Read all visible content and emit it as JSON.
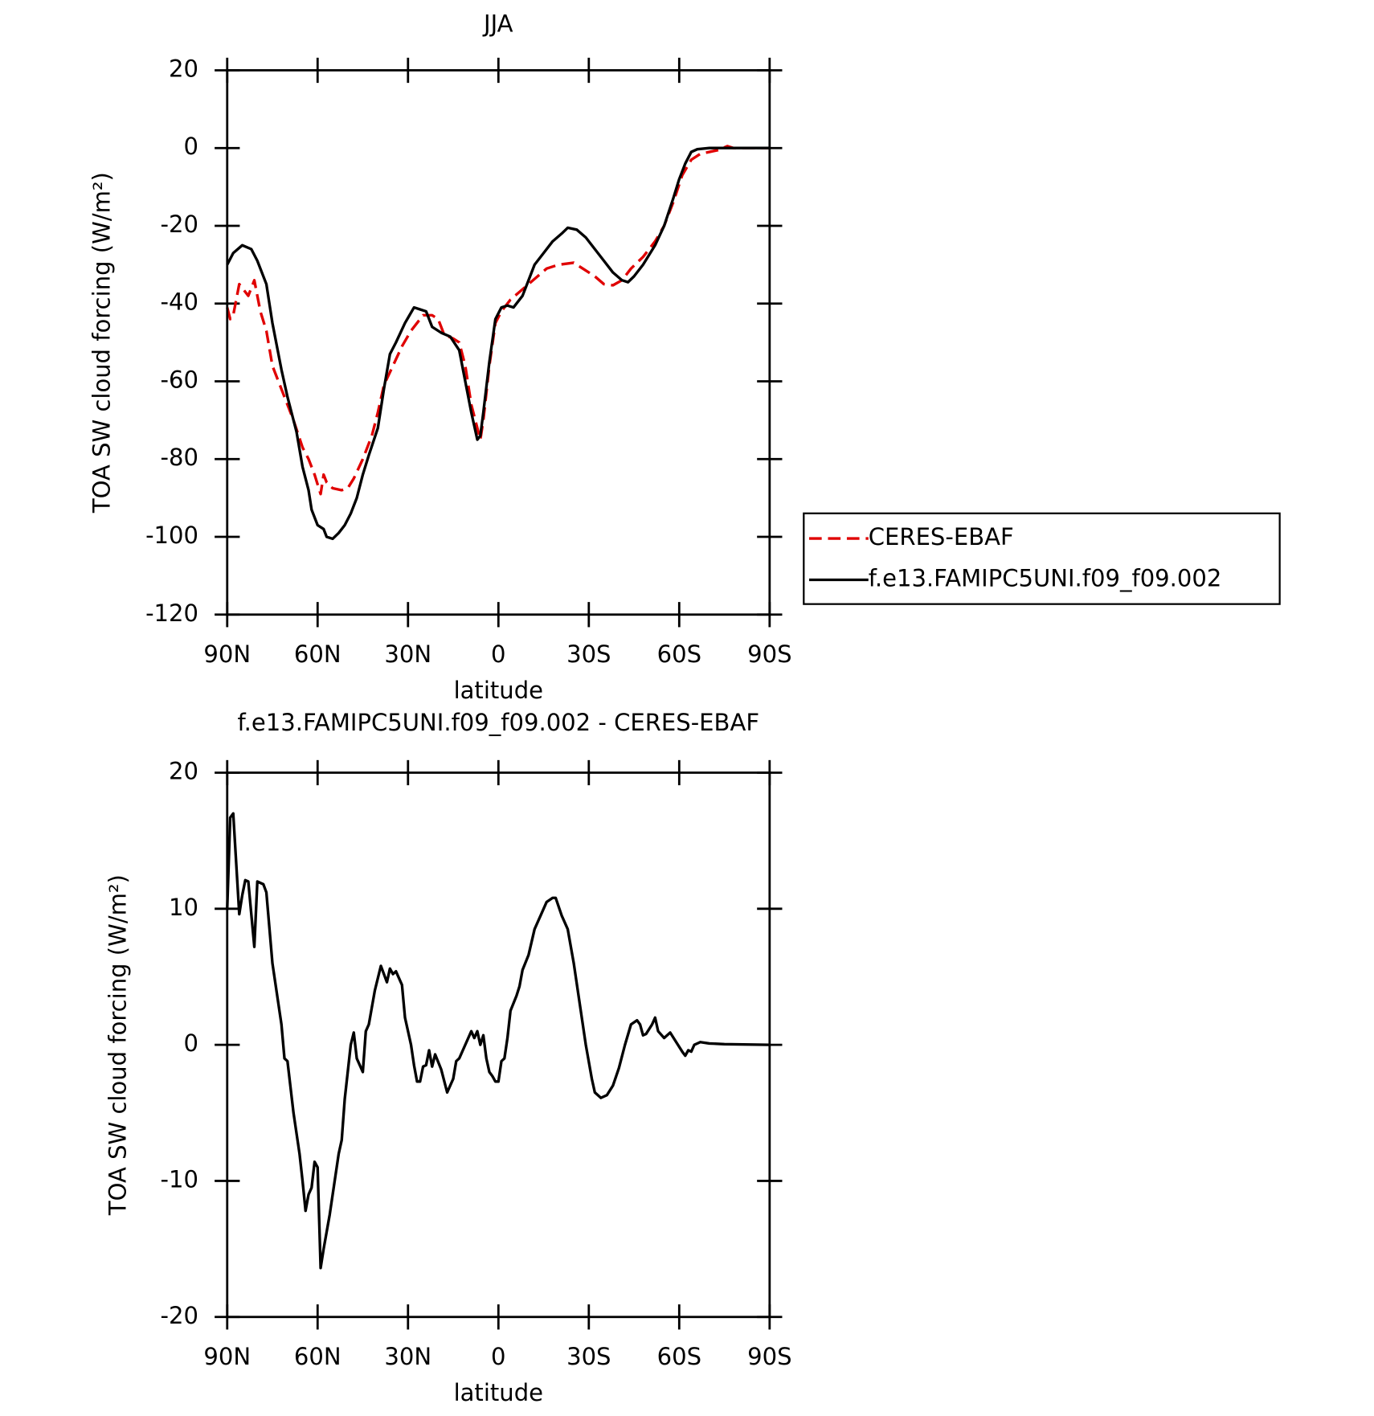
{
  "chart_data": [
    {
      "type": "line",
      "title": "JJA",
      "xlabel": "latitude",
      "ylabel": "TOA SW cloud forcing (W/m²)",
      "xlim": [
        90,
        -90
      ],
      "xticks": [
        {
          "value": 90,
          "label": "90N"
        },
        {
          "value": 60,
          "label": "60N"
        },
        {
          "value": 30,
          "label": "30N"
        },
        0,
        {
          "value": -30,
          "label": "30S"
        },
        {
          "value": -60,
          "label": "60S"
        },
        {
          "value": -90,
          "label": "90S"
        }
      ],
      "ylim": [
        -120,
        20
      ],
      "yticks": [
        -120,
        -100,
        -80,
        -60,
        -40,
        -20,
        0,
        20
      ],
      "legend": "right",
      "series": [
        {
          "name": "CERES-EBAF",
          "color": "#e00000",
          "dashed": true,
          "x": [
            90,
            89,
            88,
            86,
            84,
            83,
            81,
            79,
            77,
            75,
            72,
            70,
            68,
            65,
            63,
            61,
            59,
            58,
            57,
            55,
            52,
            50,
            48,
            45,
            42,
            40,
            38,
            35,
            32,
            29,
            27,
            25,
            22,
            20,
            18,
            15,
            13,
            11,
            9,
            7,
            6,
            5,
            3,
            1,
            -1,
            -4,
            -7,
            -10,
            -13,
            -16,
            -20,
            -25,
            -28,
            -32,
            -35,
            -38,
            -41,
            -44,
            -48,
            -52,
            -55,
            -58,
            -61,
            -64,
            -67,
            -70,
            -73,
            -76,
            -78,
            -90
          ],
          "values": [
            -41,
            -44,
            -43,
            -35,
            -37,
            -38,
            -34,
            -42,
            -47,
            -56,
            -62,
            -66,
            -70,
            -77,
            -80,
            -84,
            -89,
            -84,
            -86,
            -87.5,
            -88,
            -87.5,
            -85,
            -80,
            -74,
            -68,
            -61,
            -56,
            -51,
            -47,
            -45,
            -43,
            -43,
            -44,
            -48,
            -49,
            -50,
            -56,
            -66,
            -72,
            -75,
            -70,
            -56,
            -45,
            -42,
            -39,
            -37,
            -35,
            -33,
            -31,
            -30,
            -29.5,
            -31,
            -33,
            -35,
            -35.3,
            -34,
            -31,
            -28,
            -24,
            -20,
            -14,
            -7,
            -3,
            -1.5,
            -1,
            -0.5,
            0.5,
            0,
            0
          ]
        },
        {
          "name": "f.e13.FAMIPC5UNI.f09_f09.002",
          "color": "#000000",
          "dashed": false,
          "x": [
            90,
            88,
            85,
            82,
            80,
            77,
            75,
            72,
            70,
            67,
            65,
            63,
            62,
            60,
            58,
            57,
            55,
            53,
            51,
            49,
            47,
            45,
            43,
            40,
            38,
            36,
            34,
            31,
            28,
            26,
            24,
            22,
            19,
            16,
            13,
            11,
            9,
            7,
            6,
            5,
            3,
            1,
            -1,
            -3,
            -5,
            -8,
            -10,
            -12,
            -15,
            -18,
            -21,
            -23,
            -26,
            -29,
            -32,
            -35,
            -38,
            -41,
            -43,
            -45,
            -48,
            -52,
            -55,
            -58,
            -60,
            -62,
            -64,
            -66,
            -70,
            -75,
            -80,
            -90
          ],
          "values": [
            -30,
            -27,
            -25,
            -26,
            -29,
            -35,
            -45,
            -57,
            -64,
            -73,
            -82,
            -88,
            -93,
            -97,
            -98,
            -100,
            -100.5,
            -99,
            -97,
            -94,
            -90,
            -84,
            -79,
            -72,
            -62,
            -53,
            -50,
            -45,
            -41,
            -41.5,
            -42,
            -46,
            -47.5,
            -48.5,
            -52,
            -60,
            -68,
            -75,
            -74,
            -68,
            -55,
            -44,
            -41,
            -40.5,
            -41,
            -38,
            -34,
            -30,
            -27,
            -24,
            -22,
            -20.5,
            -21,
            -23,
            -26,
            -29,
            -32,
            -34,
            -34.5,
            -33,
            -30,
            -25,
            -20,
            -13,
            -8,
            -4,
            -1,
            -0.3,
            0,
            0,
            0,
            0
          ]
        }
      ]
    },
    {
      "type": "line",
      "title": "f.e13.FAMIPC5UNI.f09_f09.002 - CERES-EBAF",
      "xlabel": "latitude",
      "ylabel": "TOA SW cloud forcing (W/m²)",
      "xlim": [
        90,
        -90
      ],
      "xticks": [
        {
          "value": 90,
          "label": "90N"
        },
        {
          "value": 60,
          "label": "60N"
        },
        {
          "value": 30,
          "label": "30N"
        },
        0,
        {
          "value": -30,
          "label": "30S"
        },
        {
          "value": -60,
          "label": "60S"
        },
        {
          "value": -90,
          "label": "90S"
        }
      ],
      "ylim": [
        -20,
        20
      ],
      "yticks": [
        -20,
        -10,
        0,
        10,
        20
      ],
      "series": [
        {
          "color": "#000000",
          "dashed": false,
          "x": [
            90,
            89,
            88,
            86,
            85,
            84,
            83,
            81,
            80,
            78,
            77,
            75,
            73,
            72,
            71,
            70,
            68,
            66,
            65,
            64,
            63,
            62,
            61,
            60,
            59,
            58,
            56,
            55,
            53,
            52,
            51,
            50,
            49,
            48,
            47,
            45,
            44,
            43,
            41,
            39,
            37,
            36,
            35,
            34,
            32,
            31,
            29,
            28,
            27,
            26,
            25,
            24,
            23,
            22,
            21,
            19,
            17,
            15,
            14,
            13,
            11,
            9,
            8,
            7,
            6,
            5,
            4,
            3,
            2,
            1,
            0,
            -1,
            -2,
            -3,
            -4,
            -6,
            -7,
            -8,
            -10,
            -12,
            -14,
            -16,
            -18,
            -19,
            -21,
            -23,
            -25,
            -27,
            -29,
            -31,
            -32,
            -34,
            -36,
            -38,
            -40,
            -42,
            -44,
            -46,
            -47,
            -48,
            -49,
            -51,
            -52,
            -53,
            -55,
            -57,
            -59,
            -61,
            -62,
            -63,
            -64,
            -65,
            -67,
            -70,
            -75,
            -90
          ],
          "values": [
            10,
            16.7,
            17,
            9.6,
            11,
            12.1,
            12,
            7.2,
            12,
            11.8,
            11.2,
            6,
            3,
            1.5,
            -1,
            -1.2,
            -5,
            -8,
            -10,
            -12.2,
            -11,
            -10.5,
            -8.6,
            -9,
            -16.4,
            -15,
            -12.5,
            -11,
            -8,
            -7,
            -4,
            -2,
            0,
            0.9,
            -1,
            -2,
            1,
            1.5,
            4,
            5.8,
            4.6,
            5.6,
            5.2,
            5.4,
            4.4,
            2,
            0,
            -1.5,
            -2.7,
            -2.7,
            -1.6,
            -1.5,
            -0.4,
            -1.6,
            -0.7,
            -1.8,
            -3.5,
            -2.5,
            -1.2,
            -1,
            0,
            1,
            0.5,
            1,
            0,
            0.7,
            -1,
            -2,
            -2.3,
            -2.7,
            -2.7,
            -1.2,
            -1,
            0.5,
            2.5,
            3.6,
            4.3,
            5.5,
            6.6,
            8.5,
            9.5,
            10.5,
            10.8,
            10.8,
            9.5,
            8.5,
            6,
            3,
            0,
            -2.5,
            -3.5,
            -3.9,
            -3.7,
            -3,
            -1.7,
            0,
            1.5,
            1.8,
            1.5,
            0.7,
            0.8,
            1.5,
            2,
            1,
            0.5,
            0.9,
            0.2,
            -0.5,
            -0.8,
            -0.4,
            -0.5,
            0,
            0.2,
            0.1,
            0.05,
            0
          ]
        }
      ]
    }
  ]
}
